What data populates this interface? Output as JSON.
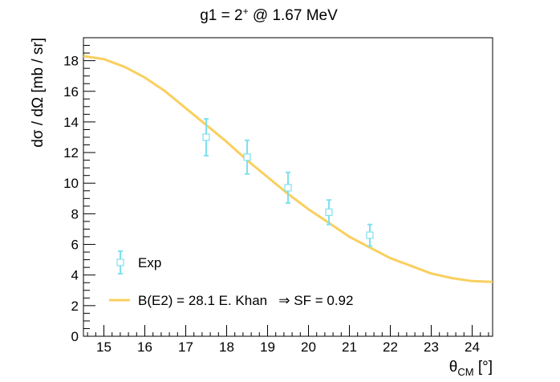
{
  "chart_data": {
    "type": "scatter",
    "title_main": "g1 = 2",
    "title_sup": "+",
    "title_rest": " @ 1.67 MeV",
    "ylabel": "dσ / dΩ [mb / sr]",
    "xlabel_main": "θ",
    "xlabel_sub": "CM",
    "xlabel_rest": " [°]",
    "xlim": [
      14.5,
      24.5
    ],
    "ylim": [
      0,
      19.5
    ],
    "x_major_ticks": [
      15,
      16,
      17,
      18,
      19,
      20,
      21,
      22,
      23,
      24
    ],
    "y_major_ticks": [
      0,
      2,
      4,
      6,
      8,
      10,
      12,
      14,
      16,
      18
    ],
    "x_tick_labels": [
      "15",
      "16",
      "17",
      "18",
      "19",
      "20",
      "21",
      "22",
      "23",
      "24"
    ],
    "y_tick_labels": [
      "0",
      "2",
      "4",
      "6",
      "8",
      "10",
      "12",
      "14",
      "16",
      "18"
    ],
    "legend_position": "bottom-left",
    "series": [
      {
        "name": "Exp",
        "kind": "points",
        "color": "#7fe0ee",
        "x": [
          17.5,
          18.5,
          19.5,
          20.5,
          21.5
        ],
        "y": [
          13.0,
          11.7,
          9.7,
          8.1,
          6.6
        ],
        "yerr": [
          1.2,
          1.1,
          1.0,
          0.8,
          0.7
        ]
      },
      {
        "name": "B(E2) = 28.1 E. Khan   ⇒ SF = 0.92",
        "kind": "line",
        "color": "#f9cf5f",
        "x": [
          14.5,
          15.0,
          15.5,
          16.0,
          16.5,
          17.0,
          17.5,
          18.0,
          18.5,
          19.0,
          19.5,
          20.0,
          20.5,
          21.0,
          21.5,
          22.0,
          22.5,
          23.0,
          23.5,
          24.0,
          24.5
        ],
        "y": [
          18.3,
          18.1,
          17.6,
          16.9,
          16.0,
          14.9,
          13.8,
          12.7,
          11.5,
          10.4,
          9.3,
          8.3,
          7.4,
          6.5,
          5.8,
          5.1,
          4.6,
          4.1,
          3.8,
          3.6,
          3.55
        ]
      }
    ]
  }
}
